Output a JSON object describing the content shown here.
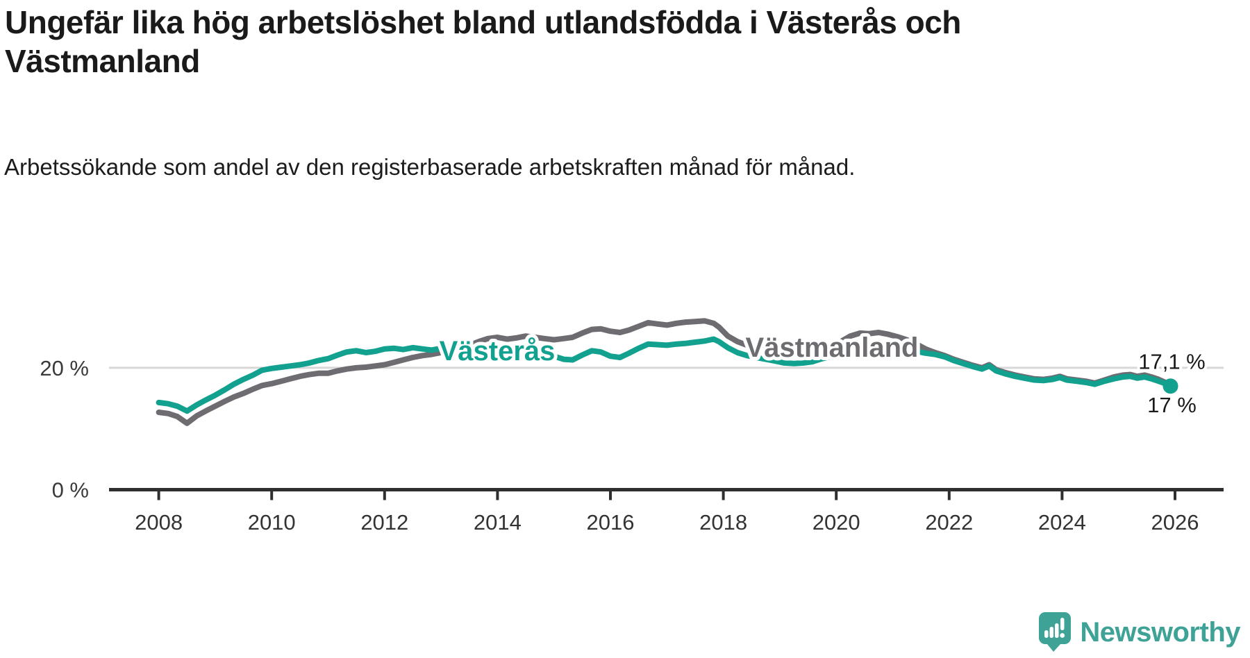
{
  "header": {
    "title": "Ungefär lika hög arbetslöshet bland utlandsfödda i Västerås och Västmanland",
    "subtitle": "Arbetssökande som andel av den registerbaserade arbetskraften månad för månad."
  },
  "chart_data": {
    "type": "line",
    "title": "Ungefär lika hög arbetslöshet bland utlandsfödda i Västerås och Västmanland",
    "subtitle": "Arbetssökande som andel av den registerbaserade arbetskraften månad för månad.",
    "unit": "%",
    "grid": "single horizontal gridline at 20 %",
    "legend_position": "inline labels on lines",
    "x_axis": {
      "ticks": [
        2008,
        2010,
        2012,
        2014,
        2016,
        2018,
        2020,
        2022,
        2024,
        2026
      ],
      "range": [
        2008,
        2026.4
      ]
    },
    "y_axis": {
      "ticks": [
        {
          "value": 20,
          "label": "20 %"
        },
        {
          "value": 0,
          "label": "0 %"
        }
      ],
      "range": [
        0,
        30
      ]
    },
    "series": [
      {
        "name": "Västmanland",
        "color": "#6e6c71",
        "end_value": 17.1,
        "end_label": "17,1 %",
        "points": [
          [
            2008.0,
            12.7
          ],
          [
            2008.17,
            12.5
          ],
          [
            2008.33,
            12.0
          ],
          [
            2008.5,
            10.9
          ],
          [
            2008.67,
            12.1
          ],
          [
            2008.83,
            12.9
          ],
          [
            2009.0,
            13.7
          ],
          [
            2009.17,
            14.5
          ],
          [
            2009.33,
            15.2
          ],
          [
            2009.5,
            15.8
          ],
          [
            2009.67,
            16.5
          ],
          [
            2009.83,
            17.1
          ],
          [
            2010.0,
            17.4
          ],
          [
            2010.17,
            17.8
          ],
          [
            2010.33,
            18.2
          ],
          [
            2010.5,
            18.6
          ],
          [
            2010.67,
            18.9
          ],
          [
            2010.83,
            19.1
          ],
          [
            2011.0,
            19.1
          ],
          [
            2011.17,
            19.5
          ],
          [
            2011.33,
            19.8
          ],
          [
            2011.5,
            20.0
          ],
          [
            2011.67,
            20.1
          ],
          [
            2011.83,
            20.3
          ],
          [
            2012.0,
            20.5
          ],
          [
            2012.17,
            20.9
          ],
          [
            2012.33,
            21.3
          ],
          [
            2012.5,
            21.7
          ],
          [
            2012.67,
            22.0
          ],
          [
            2012.83,
            22.2
          ],
          [
            2013.0,
            22.5
          ],
          [
            2013.17,
            22.8
          ],
          [
            2013.33,
            23.2
          ],
          [
            2013.5,
            23.7
          ],
          [
            2013.67,
            24.3
          ],
          [
            2013.83,
            24.8
          ],
          [
            2014.0,
            25.0
          ],
          [
            2014.17,
            24.7
          ],
          [
            2014.33,
            24.9
          ],
          [
            2014.5,
            25.2
          ],
          [
            2014.67,
            25.0
          ],
          [
            2014.83,
            24.8
          ],
          [
            2015.0,
            24.6
          ],
          [
            2015.17,
            24.8
          ],
          [
            2015.33,
            25.0
          ],
          [
            2015.5,
            25.7
          ],
          [
            2015.67,
            26.3
          ],
          [
            2015.83,
            26.4
          ],
          [
            2016.0,
            26.0
          ],
          [
            2016.17,
            25.8
          ],
          [
            2016.33,
            26.2
          ],
          [
            2016.5,
            26.8
          ],
          [
            2016.67,
            27.4
          ],
          [
            2016.83,
            27.2
          ],
          [
            2017.0,
            27.0
          ],
          [
            2017.17,
            27.3
          ],
          [
            2017.33,
            27.5
          ],
          [
            2017.5,
            27.6
          ],
          [
            2017.67,
            27.7
          ],
          [
            2017.83,
            27.3
          ],
          [
            2017.92,
            26.7
          ],
          [
            2018.08,
            25.2
          ],
          [
            2018.25,
            24.3
          ],
          [
            2018.42,
            23.7
          ],
          [
            2018.58,
            23.2
          ],
          [
            2018.75,
            22.9
          ],
          [
            2018.92,
            22.7
          ],
          [
            2019.08,
            22.5
          ],
          [
            2019.25,
            22.4
          ],
          [
            2019.42,
            22.5
          ],
          [
            2019.58,
            22.7
          ],
          [
            2019.75,
            23.0
          ],
          [
            2019.92,
            23.5
          ],
          [
            2020.08,
            24.3
          ],
          [
            2020.25,
            25.2
          ],
          [
            2020.42,
            25.7
          ],
          [
            2020.58,
            25.6
          ],
          [
            2020.75,
            25.8
          ],
          [
            2020.92,
            25.5
          ],
          [
            2021.08,
            25.1
          ],
          [
            2021.25,
            24.6
          ],
          [
            2021.42,
            23.9
          ],
          [
            2021.58,
            23.1
          ],
          [
            2021.75,
            22.5
          ],
          [
            2021.92,
            22.0
          ],
          [
            2022.08,
            21.4
          ],
          [
            2022.25,
            20.9
          ],
          [
            2022.42,
            20.4
          ],
          [
            2022.58,
            20.0
          ],
          [
            2022.71,
            20.5
          ],
          [
            2022.83,
            19.7
          ],
          [
            2023.0,
            19.2
          ],
          [
            2023.17,
            18.8
          ],
          [
            2023.33,
            18.5
          ],
          [
            2023.5,
            18.2
          ],
          [
            2023.67,
            18.1
          ],
          [
            2023.83,
            18.3
          ],
          [
            2023.96,
            18.6
          ],
          [
            2024.08,
            18.2
          ],
          [
            2024.25,
            18.0
          ],
          [
            2024.42,
            17.8
          ],
          [
            2024.58,
            17.5
          ],
          [
            2024.75,
            18.0
          ],
          [
            2024.92,
            18.5
          ],
          [
            2025.08,
            18.8
          ],
          [
            2025.21,
            18.9
          ],
          [
            2025.33,
            18.6
          ],
          [
            2025.46,
            18.8
          ],
          [
            2025.58,
            18.5
          ],
          [
            2025.71,
            18.1
          ],
          [
            2025.83,
            17.6
          ],
          [
            2025.92,
            17.1
          ]
        ]
      },
      {
        "name": "Västerås",
        "color": "#12a08f",
        "end_value": 17.0,
        "end_label": "17 %",
        "end_dot": true,
        "points": [
          [
            2008.0,
            14.3
          ],
          [
            2008.17,
            14.1
          ],
          [
            2008.33,
            13.7
          ],
          [
            2008.5,
            12.9
          ],
          [
            2008.67,
            13.9
          ],
          [
            2008.83,
            14.7
          ],
          [
            2009.0,
            15.5
          ],
          [
            2009.17,
            16.4
          ],
          [
            2009.33,
            17.3
          ],
          [
            2009.5,
            18.1
          ],
          [
            2009.67,
            18.8
          ],
          [
            2009.83,
            19.6
          ],
          [
            2010.0,
            19.9
          ],
          [
            2010.17,
            20.1
          ],
          [
            2010.33,
            20.3
          ],
          [
            2010.5,
            20.5
          ],
          [
            2010.67,
            20.8
          ],
          [
            2010.83,
            21.2
          ],
          [
            2011.0,
            21.5
          ],
          [
            2011.17,
            22.1
          ],
          [
            2011.33,
            22.6
          ],
          [
            2011.5,
            22.8
          ],
          [
            2011.67,
            22.5
          ],
          [
            2011.83,
            22.7
          ],
          [
            2012.0,
            23.1
          ],
          [
            2012.17,
            23.2
          ],
          [
            2012.33,
            23.0
          ],
          [
            2012.5,
            23.3
          ],
          [
            2012.67,
            23.1
          ],
          [
            2012.83,
            22.9
          ],
          [
            2013.0,
            23.2
          ],
          [
            2013.17,
            23.4
          ],
          [
            2013.33,
            23.2
          ],
          [
            2013.5,
            23.4
          ],
          [
            2013.67,
            23.3
          ],
          [
            2013.83,
            23.2
          ],
          [
            2014.0,
            23.4
          ],
          [
            2014.17,
            23.3
          ],
          [
            2014.33,
            23.4
          ],
          [
            2014.5,
            23.2
          ],
          [
            2014.67,
            23.0
          ],
          [
            2014.83,
            22.5
          ],
          [
            2015.0,
            21.9
          ],
          [
            2015.17,
            21.4
          ],
          [
            2015.33,
            21.3
          ],
          [
            2015.5,
            22.1
          ],
          [
            2015.67,
            22.8
          ],
          [
            2015.83,
            22.6
          ],
          [
            2016.0,
            21.9
          ],
          [
            2016.17,
            21.7
          ],
          [
            2016.33,
            22.4
          ],
          [
            2016.5,
            23.2
          ],
          [
            2016.67,
            23.9
          ],
          [
            2016.83,
            23.8
          ],
          [
            2017.0,
            23.7
          ],
          [
            2017.17,
            23.9
          ],
          [
            2017.33,
            24.0
          ],
          [
            2017.5,
            24.2
          ],
          [
            2017.67,
            24.4
          ],
          [
            2017.83,
            24.7
          ],
          [
            2017.92,
            24.3
          ],
          [
            2018.08,
            23.3
          ],
          [
            2018.25,
            22.5
          ],
          [
            2018.42,
            22.0
          ],
          [
            2018.58,
            21.7
          ],
          [
            2018.75,
            21.4
          ],
          [
            2018.92,
            21.1
          ],
          [
            2019.08,
            20.8
          ],
          [
            2019.25,
            20.7
          ],
          [
            2019.42,
            20.8
          ],
          [
            2019.58,
            21.0
          ],
          [
            2019.75,
            21.5
          ],
          [
            2019.92,
            21.9
          ],
          [
            2020.08,
            22.5
          ],
          [
            2020.25,
            23.3
          ],
          [
            2020.42,
            24.0
          ],
          [
            2020.58,
            24.1
          ],
          [
            2020.75,
            23.9
          ],
          [
            2020.92,
            23.6
          ],
          [
            2021.08,
            23.3
          ],
          [
            2021.25,
            23.0
          ],
          [
            2021.42,
            22.7
          ],
          [
            2021.58,
            22.4
          ],
          [
            2021.75,
            22.2
          ],
          [
            2021.92,
            21.8
          ],
          [
            2022.08,
            21.2
          ],
          [
            2022.25,
            20.7
          ],
          [
            2022.42,
            20.2
          ],
          [
            2022.58,
            19.8
          ],
          [
            2022.71,
            20.3
          ],
          [
            2022.83,
            19.5
          ],
          [
            2023.0,
            19.0
          ],
          [
            2023.17,
            18.6
          ],
          [
            2023.33,
            18.3
          ],
          [
            2023.5,
            18.0
          ],
          [
            2023.67,
            17.9
          ],
          [
            2023.83,
            18.1
          ],
          [
            2023.96,
            18.4
          ],
          [
            2024.08,
            18.0
          ],
          [
            2024.25,
            17.8
          ],
          [
            2024.42,
            17.6
          ],
          [
            2024.58,
            17.3
          ],
          [
            2024.75,
            17.8
          ],
          [
            2024.92,
            18.2
          ],
          [
            2025.08,
            18.5
          ],
          [
            2025.21,
            18.6
          ],
          [
            2025.33,
            18.3
          ],
          [
            2025.46,
            18.5
          ],
          [
            2025.58,
            18.2
          ],
          [
            2025.71,
            17.8
          ],
          [
            2025.83,
            17.4
          ],
          [
            2025.92,
            17.0
          ]
        ]
      }
    ]
  },
  "branding": {
    "logo_text": "Newsworthy",
    "logo_color": "#3ea296"
  }
}
